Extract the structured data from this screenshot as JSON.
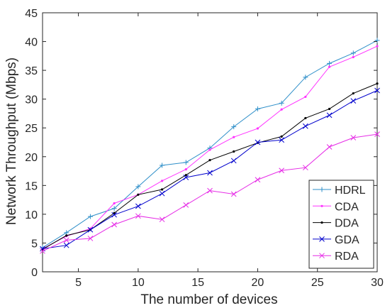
{
  "chart_data": {
    "type": "line",
    "title": "",
    "xlabel": "The number of devices",
    "ylabel": "Network Throughput (Mbps)",
    "xlim": [
      2,
      30
    ],
    "ylim": [
      0,
      45
    ],
    "xticks": [
      5,
      10,
      15,
      20,
      25,
      30
    ],
    "yticks": [
      0,
      5,
      10,
      15,
      20,
      25,
      30,
      35,
      40,
      45
    ],
    "x": [
      2,
      4,
      6,
      8,
      10,
      12,
      14,
      16,
      18,
      20,
      22,
      24,
      26,
      28,
      30
    ],
    "grid": false,
    "legend_position": "lower-right",
    "series": [
      {
        "name": "HDRL",
        "color": "#2e8fc9",
        "marker": "+",
        "values": [
          4.2,
          6.8,
          9.6,
          11.0,
          14.8,
          18.5,
          19.0,
          21.5,
          25.2,
          28.3,
          29.3,
          33.8,
          36.2,
          38.0,
          40.2
        ]
      },
      {
        "name": "CDA",
        "color": "#ff33ff",
        "marker": ".",
        "values": [
          4.0,
          6.2,
          7.5,
          11.9,
          13.4,
          15.8,
          17.8,
          21.2,
          23.4,
          24.9,
          28.2,
          30.4,
          35.6,
          37.3,
          39.2
        ]
      },
      {
        "name": "DDA",
        "color": "#000000",
        "marker": ".",
        "values": [
          3.9,
          6.3,
          7.3,
          10.2,
          13.4,
          14.3,
          16.8,
          19.4,
          20.9,
          22.4,
          23.5,
          26.7,
          28.3,
          31.0,
          32.7
        ]
      },
      {
        "name": "GDA",
        "color": "#0000cc",
        "marker": "x",
        "values": [
          4.0,
          4.6,
          7.3,
          9.9,
          11.4,
          13.6,
          16.4,
          17.2,
          19.3,
          22.5,
          22.9,
          25.3,
          27.2,
          29.7,
          31.5
        ]
      },
      {
        "name": "RDA",
        "color": "#e62be6",
        "marker": "x",
        "values": [
          3.6,
          5.5,
          5.8,
          8.2,
          9.7,
          9.1,
          11.6,
          14.1,
          13.5,
          16.0,
          17.6,
          18.1,
          21.7,
          23.3,
          23.9
        ]
      }
    ]
  }
}
